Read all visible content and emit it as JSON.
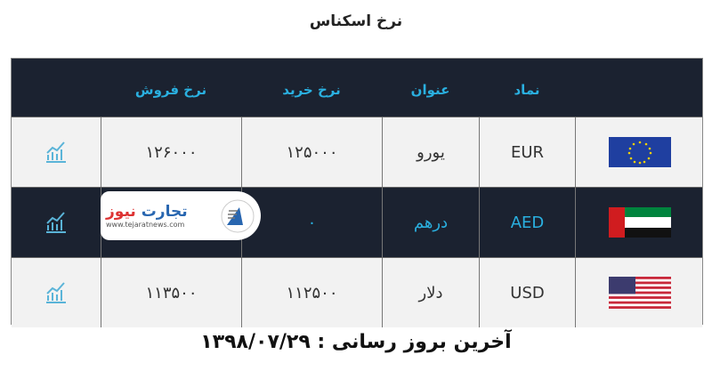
{
  "title": "نرخ اسکناس",
  "headers": {
    "symbol": "نماد",
    "name": "عنوان",
    "buy": "نرخ خرید",
    "sell": "نرخ فروش"
  },
  "rows": [
    {
      "flag": "eu-flag",
      "symbol": "EUR",
      "name": "یورو",
      "buy": "۱۲۵۰۰۰",
      "sell": "۱۲۶۰۰۰",
      "icon": "chart-icon"
    },
    {
      "flag": "uae-flag",
      "symbol": "AED",
      "name": "درهم",
      "buy": "۰",
      "sell": "",
      "icon": "chart-icon"
    },
    {
      "flag": "us-flag",
      "symbol": "USD",
      "name": "دلار",
      "buy": "۱۱۲۵۰۰",
      "sell": "۱۱۳۵۰۰",
      "icon": "chart-icon"
    }
  ],
  "logo": {
    "name_part1": "تجارت",
    "name_part2": "نیوز",
    "url": "www.tejaratnews.com"
  },
  "footer": "آخرین بروز رسانی : ۱۳۹۸/۰۷/۲۹",
  "colors": {
    "header_bg": "#1b2230",
    "accent": "#2ab0e0",
    "row_light": "#f2f2f2"
  }
}
